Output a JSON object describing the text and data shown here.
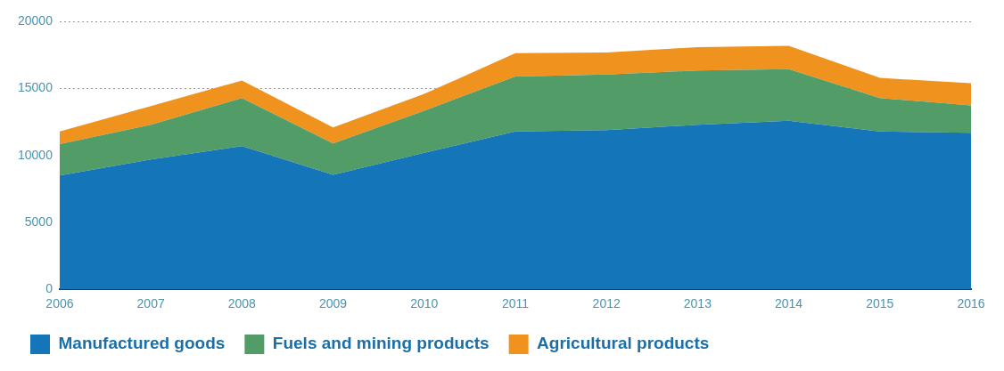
{
  "chart_data": {
    "type": "area",
    "stacked": true,
    "categories": [
      "2006",
      "2007",
      "2008",
      "2009",
      "2010",
      "2011",
      "2012",
      "2013",
      "2014",
      "2015",
      "2016"
    ],
    "series": [
      {
        "name": "Manufactured goods",
        "color": "#1476b8",
        "values": [
          8500,
          9700,
          10700,
          8550,
          10200,
          11800,
          11900,
          12300,
          12600,
          11800,
          11700
        ]
      },
      {
        "name": "Fuels and mining products",
        "color": "#519c67",
        "values": [
          2350,
          2600,
          3600,
          2350,
          3150,
          4100,
          4150,
          4050,
          3850,
          2500,
          2050
        ]
      },
      {
        "name": "Agricultural products",
        "color": "#f0931e",
        "values": [
          950,
          1400,
          1300,
          1200,
          1250,
          1750,
          1650,
          1750,
          1750,
          1500,
          1650
        ]
      }
    ],
    "ylim": [
      0,
      20000
    ],
    "yticks": [
      0,
      5000,
      10000,
      15000,
      20000
    ],
    "grid": "y",
    "legend": "bottom left"
  }
}
